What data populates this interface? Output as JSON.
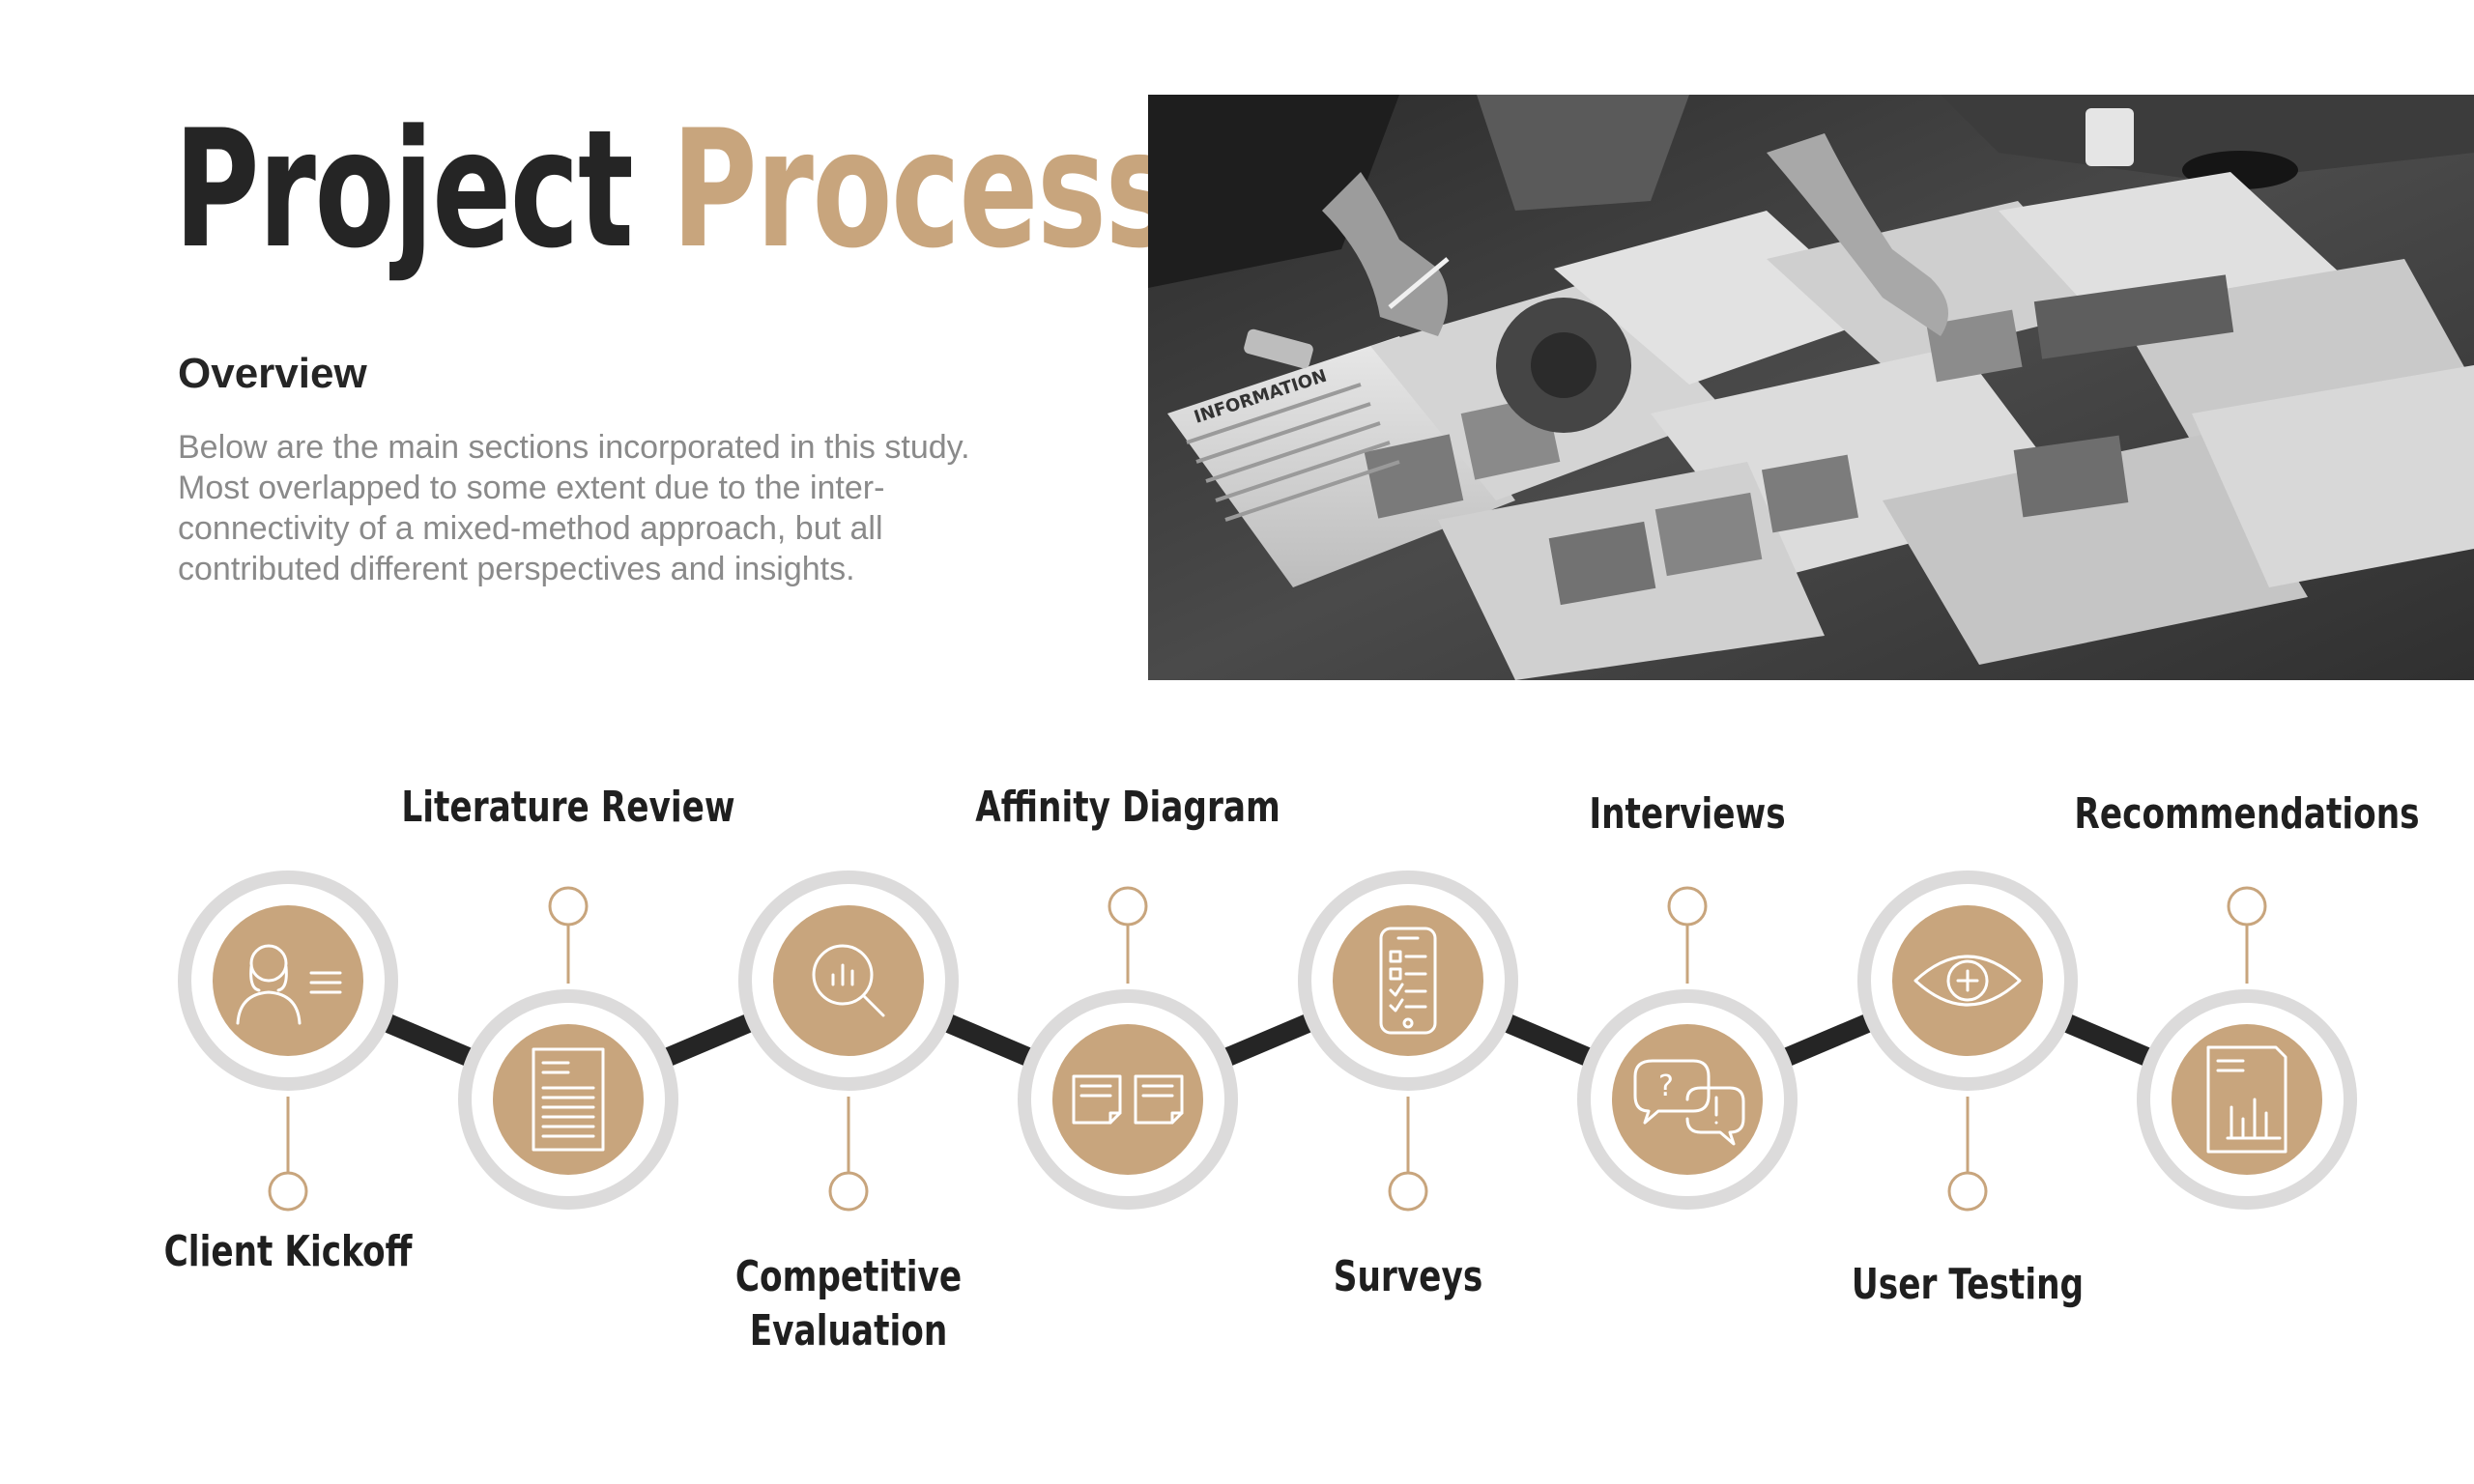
{
  "title": {
    "part1": "Project",
    "part2": "Process"
  },
  "overview": {
    "heading": "Overview",
    "text": "Below are the main sections incorporated in this study. Most overlapped to some extent due to the inter-connectivity of a mixed-method approach, but all contributed different perspectives and insights."
  },
  "photo": {
    "paper_label": "INFORMATION"
  },
  "colors": {
    "accent": "#c8a57d",
    "dark": "#252525",
    "ring": "#dcdbdb",
    "body_text": "#8a8a8a"
  },
  "steps": [
    {
      "label": "Client Kickoff",
      "icon": "person-profile-icon"
    },
    {
      "label": "Literature Review",
      "icon": "document-icon"
    },
    {
      "label": "Competitive\nEvaluation",
      "icon": "magnify-chart-icon"
    },
    {
      "label": "Affinity Diagram",
      "icon": "sticky-notes-icon"
    },
    {
      "label": "Surveys",
      "icon": "phone-checklist-icon"
    },
    {
      "label": "Interviews",
      "icon": "chat-bubbles-icon"
    },
    {
      "label": "User Testing",
      "icon": "eye-icon"
    },
    {
      "label": "Recommendations",
      "icon": "report-chart-icon"
    }
  ]
}
